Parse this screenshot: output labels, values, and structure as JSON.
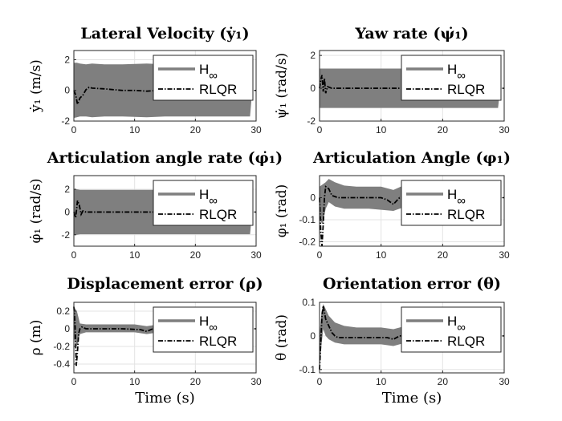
{
  "chart_data": [
    {
      "type": "line",
      "title": "Lateral Velocity (ẏ₁)",
      "ylabel": "ẏ₁ (m/s)",
      "xlabel": "",
      "xlim": [
        0,
        30
      ],
      "ylim": [
        -2,
        2.6
      ],
      "xticks": [
        "0",
        "10",
        "20",
        "30"
      ],
      "yticks": [
        {
          "v": 2,
          "label": "2"
        },
        {
          "v": 0,
          "label": "0"
        },
        {
          "v": -2,
          "label": "-2"
        }
      ],
      "grid": true,
      "legend": "top-right",
      "series": [
        {
          "name": "H∞",
          "color": "#7f7f7f",
          "style": "band",
          "x": [
            0,
            0.5,
            1,
            2,
            3,
            5,
            8,
            12,
            15,
            20,
            25,
            28,
            29,
            29.3
          ],
          "lower": [
            -1.8,
            -1.75,
            -1.7,
            -1.7,
            -1.75,
            -1.7,
            -1.7,
            -1.75,
            -1.7,
            -1.7,
            -1.7,
            -1.7,
            -1.7,
            -0.3
          ],
          "upper": [
            1.8,
            1.8,
            1.75,
            1.7,
            1.75,
            1.7,
            1.7,
            1.75,
            1.7,
            1.7,
            1.7,
            1.7,
            1.7,
            0.3
          ]
        },
        {
          "name": "RLQR",
          "color": "#000000",
          "style": "dashdot",
          "x": [
            0,
            0.3,
            0.6,
            1,
            1.5,
            2,
            2.5,
            3,
            5,
            8,
            10,
            12,
            14,
            20,
            25,
            29
          ],
          "y": [
            0,
            -0.3,
            -0.9,
            -0.5,
            -0.3,
            0.05,
            0.2,
            0.15,
            0.1,
            0.0,
            0.0,
            -0.05,
            0.0,
            0,
            0,
            0
          ]
        }
      ]
    },
    {
      "type": "line",
      "title": "Yaw rate (ψ̇₁)",
      "ylabel": "ψ̇₁ (rad/s)",
      "xlabel": "",
      "xlim": [
        0,
        30
      ],
      "ylim": [
        -2,
        2.3
      ],
      "xticks": [
        "0",
        "10",
        "20",
        "30"
      ],
      "yticks": [
        {
          "v": 2,
          "label": "2"
        },
        {
          "v": 0,
          "label": "0"
        },
        {
          "v": -2,
          "label": "-2"
        }
      ],
      "grid": true,
      "legend": "top-right",
      "series": [
        {
          "name": "H∞",
          "color": "#7f7f7f",
          "style": "band",
          "x": [
            0,
            0.5,
            1,
            3,
            8,
            12,
            20,
            28,
            29,
            29.3
          ],
          "lower": [
            -1.2,
            -1.2,
            -1.2,
            -1.2,
            -1.2,
            -1.2,
            -1.2,
            -1.2,
            -1.2,
            -0.2
          ],
          "upper": [
            1.2,
            1.2,
            1.2,
            1.2,
            1.2,
            1.2,
            1.2,
            1.2,
            1.2,
            0.2
          ]
        },
        {
          "name": "RLQR",
          "color": "#000000",
          "style": "dashdot",
          "x": [
            0,
            0.2,
            0.4,
            0.6,
            0.8,
            1.0,
            1.3,
            2,
            5,
            10,
            29
          ],
          "y": [
            0,
            0.5,
            0.8,
            -0.2,
            0.6,
            -0.3,
            0.1,
            0.0,
            0.0,
            0.0,
            0.0
          ]
        }
      ]
    },
    {
      "type": "line",
      "title": "Articulation angle rate (φ̇₁)",
      "ylabel": "φ̇₁ (rad/s)",
      "xlabel": "",
      "xlim": [
        0,
        30
      ],
      "ylim": [
        -3,
        3.2
      ],
      "xticks": [
        "0",
        "10",
        "20",
        "30"
      ],
      "yticks": [
        {
          "v": 2,
          "label": "2"
        },
        {
          "v": 0,
          "label": "0"
        },
        {
          "v": -2,
          "label": "-2"
        }
      ],
      "grid": true,
      "legend": "top-right",
      "series": [
        {
          "name": "H∞",
          "color": "#7f7f7f",
          "style": "band",
          "x": [
            0,
            0.5,
            1,
            3,
            8,
            12,
            20,
            28,
            29,
            29.3
          ],
          "lower": [
            -2.0,
            -2.0,
            -1.95,
            -1.95,
            -1.95,
            -1.95,
            -1.95,
            -1.95,
            -1.95,
            -0.3
          ],
          "upper": [
            2.0,
            2.0,
            1.95,
            1.95,
            1.95,
            1.95,
            1.95,
            1.95,
            1.95,
            0.3
          ]
        },
        {
          "name": "RLQR",
          "color": "#000000",
          "style": "dashdot",
          "x": [
            0,
            0.3,
            0.6,
            0.9,
            1.2,
            1.5,
            2,
            3,
            10,
            29
          ],
          "y": [
            0,
            -0.5,
            1.0,
            0.6,
            -0.2,
            0.1,
            0.0,
            0.0,
            0.0,
            0.0
          ]
        }
      ]
    },
    {
      "type": "line",
      "title": "Articulation Angle (φ₁)",
      "ylabel": "φ₁ (rad)",
      "xlabel": "",
      "xlim": [
        0,
        30
      ],
      "ylim": [
        -0.22,
        0.1
      ],
      "xticks": [
        "0",
        "10",
        "20",
        "30"
      ],
      "yticks": [
        {
          "v": 0,
          "label": "0"
        },
        {
          "v": -0.1,
          "label": "-0.1"
        },
        {
          "v": -0.2,
          "label": "-0.2"
        }
      ],
      "grid": true,
      "legend": "top-right",
      "series": [
        {
          "name": "H∞",
          "color": "#7f7f7f",
          "style": "band",
          "x": [
            0,
            0.5,
            1,
            1.5,
            2.5,
            4,
            6,
            8,
            10,
            12,
            14,
            16,
            20,
            25,
            28,
            29,
            29.3
          ],
          "lower": [
            -0.1,
            -0.12,
            -0.05,
            -0.02,
            -0.04,
            -0.05,
            -0.05,
            -0.05,
            -0.055,
            -0.06,
            -0.04,
            -0.04,
            -0.04,
            -0.04,
            -0.04,
            -0.04,
            0.0
          ],
          "upper": [
            0.05,
            0.06,
            0.07,
            0.085,
            0.07,
            0.055,
            0.05,
            0.05,
            0.05,
            0.035,
            0.06,
            0.06,
            0.06,
            0.06,
            0.06,
            0.06,
            0.0
          ]
        },
        {
          "name": "RLQR",
          "color": "#000000",
          "style": "dashdot",
          "x": [
            0,
            0.2,
            0.4,
            0.6,
            0.8,
            1.0,
            1.5,
            2,
            3,
            5,
            8,
            10,
            11,
            12,
            13,
            15,
            20,
            29
          ],
          "y": [
            0,
            -0.15,
            -0.22,
            -0.12,
            0.0,
            0.05,
            0.04,
            0.01,
            0.0,
            0.0,
            0.0,
            0.0,
            -0.01,
            -0.03,
            0.0,
            0.0,
            0.0,
            0.0
          ]
        }
      ]
    },
    {
      "type": "line",
      "title": "Displacement error (ρ)",
      "ylabel": "ρ (m)",
      "xlabel": "Time (s)",
      "xlim": [
        0,
        30
      ],
      "ylim": [
        -0.5,
        0.3
      ],
      "xticks": [
        "0",
        "10",
        "20",
        "30"
      ],
      "yticks": [
        {
          "v": 0.2,
          "label": "0.2"
        },
        {
          "v": 0,
          "label": "0"
        },
        {
          "v": -0.2,
          "label": "-0.2"
        },
        {
          "v": -0.4,
          "label": "-0.4"
        }
      ],
      "grid": true,
      "legend": "top-right",
      "series": [
        {
          "name": "H∞",
          "color": "#7f7f7f",
          "style": "band",
          "x": [
            0,
            0.5,
            1,
            2,
            4,
            8,
            10,
            12,
            14,
            20,
            28,
            29,
            29.3
          ],
          "lower": [
            -0.1,
            -0.2,
            -0.06,
            -0.04,
            -0.04,
            -0.04,
            -0.04,
            -0.06,
            -0.04,
            -0.04,
            -0.04,
            -0.04,
            0.0
          ],
          "upper": [
            0.25,
            0.2,
            0.06,
            0.05,
            0.05,
            0.05,
            0.05,
            0.03,
            0.05,
            0.05,
            0.05,
            0.05,
            0.0
          ]
        },
        {
          "name": "RLQR",
          "color": "#000000",
          "style": "dashdot",
          "x": [
            0,
            0.2,
            0.4,
            0.6,
            0.8,
            1.0,
            1.3,
            2,
            4,
            8,
            11,
            12,
            13,
            15,
            29
          ],
          "y": [
            0.25,
            0.05,
            -0.42,
            -0.25,
            -0.05,
            0.0,
            0.02,
            0.0,
            0.0,
            0.0,
            -0.01,
            -0.03,
            0.0,
            0.0,
            0.0
          ]
        }
      ]
    },
    {
      "type": "line",
      "title": "Orientation error (θ)",
      "ylabel": "θ (rad)",
      "xlabel": "Time (s)",
      "xlim": [
        0,
        30
      ],
      "ylim": [
        -0.11,
        0.1
      ],
      "xticks": [
        "0",
        "10",
        "20",
        "30"
      ],
      "yticks": [
        {
          "v": 0.1,
          "label": "0.1"
        },
        {
          "v": 0,
          "label": "0"
        },
        {
          "v": -0.1,
          "label": "-0.1"
        }
      ],
      "grid": true,
      "legend": "top-right",
      "series": [
        {
          "name": "H∞",
          "color": "#7f7f7f",
          "style": "band",
          "x": [
            0,
            0.3,
            0.6,
            1,
            1.5,
            2.5,
            4,
            6,
            10,
            12,
            14,
            20,
            28,
            29,
            29.3
          ],
          "lower": [
            -0.1,
            -0.03,
            0.02,
            0.0,
            -0.01,
            -0.02,
            -0.025,
            -0.025,
            -0.025,
            -0.03,
            -0.02,
            -0.02,
            -0.02,
            -0.02,
            0.0
          ],
          "upper": [
            0.0,
            0.07,
            0.095,
            0.08,
            0.06,
            0.04,
            0.03,
            0.025,
            0.025,
            0.02,
            0.03,
            0.03,
            0.03,
            0.03,
            0.0
          ]
        },
        {
          "name": "RLQR",
          "color": "#000000",
          "style": "dashdot",
          "x": [
            0,
            0.2,
            0.4,
            0.6,
            0.8,
            1.0,
            1.5,
            2,
            2.5,
            3,
            5,
            8,
            11,
            12,
            13,
            15,
            29
          ],
          "y": [
            -0.1,
            -0.02,
            0.06,
            0.09,
            0.07,
            0.05,
            0.03,
            0.01,
            0.0,
            -0.005,
            -0.005,
            -0.005,
            -0.005,
            -0.01,
            0.0,
            0.0,
            0.0
          ]
        }
      ]
    }
  ]
}
